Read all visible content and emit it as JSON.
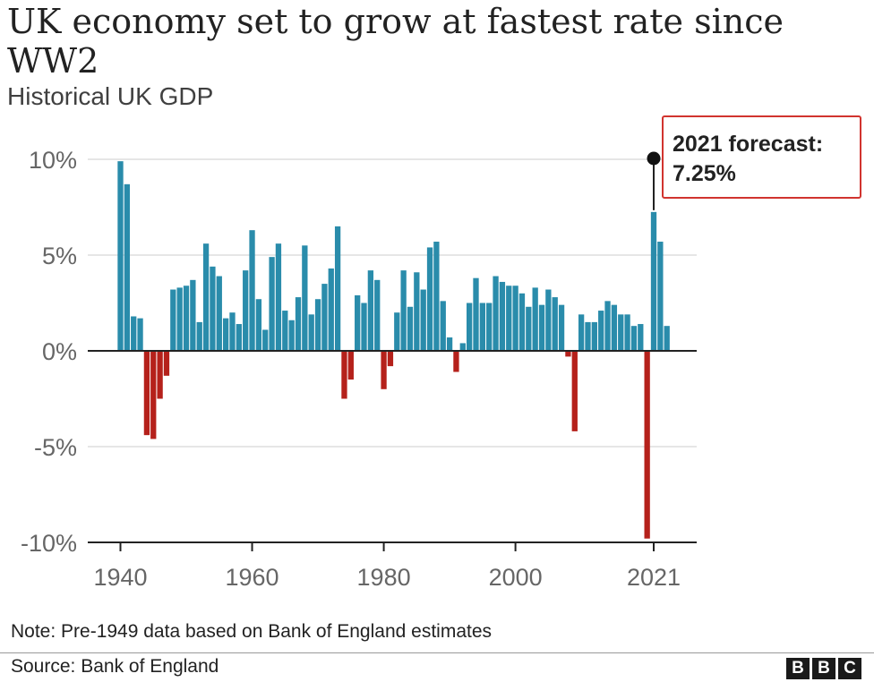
{
  "header": {
    "title": "UK economy set to grow at fastest rate since WW2",
    "subtitle": "Historical UK GDP"
  },
  "annotation": {
    "line1": "2021 forecast:",
    "line2": "7.25%"
  },
  "footer": {
    "note": "Note: Pre-1949 data based on Bank of England estimates",
    "source": "Source: Bank of England",
    "logo_letters": [
      "B",
      "B",
      "C"
    ]
  },
  "colors": {
    "positive": "#2a8cab",
    "negative": "#b5211b",
    "callout_border": "#d1342f",
    "grid": "#dddddd",
    "axis": "#222222"
  },
  "chart_data": {
    "type": "bar",
    "title": "UK economy set to grow at fastest rate since WW2",
    "subtitle": "Historical UK GDP",
    "xlabel": "",
    "ylabel": "",
    "ylim": [
      -10,
      10
    ],
    "xlim": [
      1939,
      2023
    ],
    "grid": true,
    "y_ticks": [
      10,
      5,
      0,
      -5,
      -10
    ],
    "y_tick_labels": [
      "10%",
      "5%",
      "0%",
      "-5%",
      "-10%"
    ],
    "x_ticks": [
      1940,
      1960,
      1980,
      2000,
      2021
    ],
    "x_tick_labels": [
      "1940",
      "1960",
      "1980",
      "2000",
      "2021"
    ],
    "highlight": {
      "year": 2021,
      "value": 7.25
    },
    "years": [
      1940,
      1941,
      1942,
      1943,
      1944,
      1945,
      1946,
      1947,
      1948,
      1949,
      1950,
      1951,
      1952,
      1953,
      1954,
      1955,
      1956,
      1957,
      1958,
      1959,
      1960,
      1961,
      1962,
      1963,
      1964,
      1965,
      1966,
      1967,
      1968,
      1969,
      1970,
      1971,
      1972,
      1973,
      1974,
      1975,
      1976,
      1977,
      1978,
      1979,
      1980,
      1981,
      1982,
      1983,
      1984,
      1985,
      1986,
      1987,
      1988,
      1989,
      1990,
      1991,
      1992,
      1993,
      1994,
      1995,
      1996,
      1997,
      1998,
      1999,
      2000,
      2001,
      2002,
      2003,
      2004,
      2005,
      2006,
      2007,
      2008,
      2009,
      2010,
      2011,
      2012,
      2013,
      2014,
      2015,
      2016,
      2017,
      2018,
      2019,
      2020,
      2021,
      2022,
      2023
    ],
    "values": [
      9.9,
      8.7,
      1.8,
      1.7,
      -4.4,
      -4.6,
      -2.5,
      -1.3,
      3.2,
      3.3,
      3.4,
      3.7,
      1.5,
      5.6,
      4.4,
      3.9,
      1.7,
      2.0,
      1.4,
      4.2,
      6.3,
      2.7,
      1.1,
      4.9,
      5.6,
      2.1,
      1.6,
      2.8,
      5.5,
      1.9,
      2.7,
      3.5,
      4.3,
      6.5,
      -2.5,
      -1.5,
      2.9,
      2.5,
      4.2,
      3.7,
      -2.0,
      -0.8,
      2.0,
      4.2,
      2.3,
      4.1,
      3.2,
      5.4,
      5.7,
      2.6,
      0.7,
      -1.1,
      0.4,
      2.5,
      3.8,
      2.5,
      2.5,
      3.9,
      3.6,
      3.4,
      3.4,
      3.0,
      2.3,
      3.3,
      2.4,
      3.2,
      2.8,
      2.4,
      -0.3,
      -4.2,
      1.9,
      1.5,
      1.5,
      2.1,
      2.6,
      2.4,
      1.9,
      1.9,
      1.3,
      1.4,
      -9.8,
      7.25,
      5.7,
      1.3
    ]
  }
}
